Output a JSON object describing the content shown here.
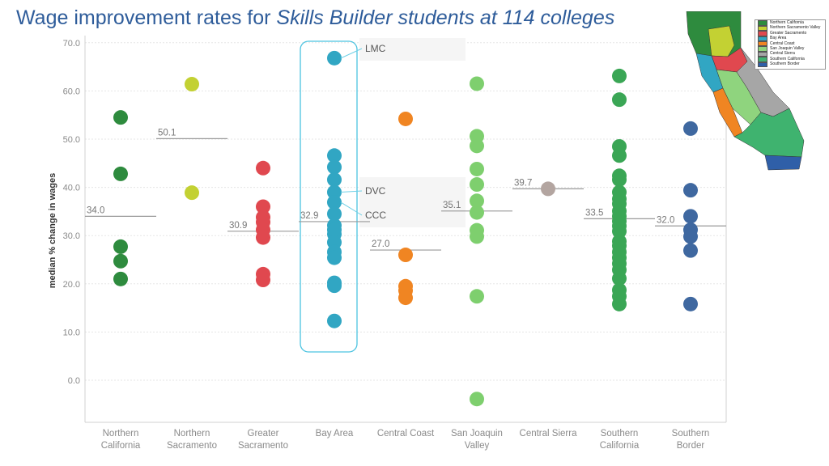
{
  "title": {
    "main": "Wage improvement rates for ",
    "emphasis": "Skills Builder students at 114 colleges"
  },
  "chart_data": {
    "type": "scatter",
    "ylabel": "median % change in wages",
    "ylim": [
      -10,
      72
    ],
    "yticks": [
      "70.0",
      "60.0",
      "50.0",
      "40.0",
      "30.0",
      "20.0",
      "10.0",
      "0.0"
    ],
    "grid": true,
    "categories": [
      {
        "name": "Northern",
        "name2": "California",
        "color": "#2e8b3e",
        "median": 34.0,
        "median_label": "34.0",
        "values": [
          54.5,
          42.8,
          27.7,
          24.7,
          21.0
        ]
      },
      {
        "name": "Northern",
        "name2": "Sacramento",
        "color": "#c3d133",
        "median": 50.1,
        "median_label": "50.1",
        "values": [
          61.4,
          38.9
        ]
      },
      {
        "name": "Greater",
        "name2": "Sacramento",
        "color": "#e0484f",
        "median": 30.9,
        "median_label": "30.9",
        "values": [
          44.0,
          36.0,
          33.8,
          32.8,
          31.2,
          29.6,
          22.0,
          20.8
        ]
      },
      {
        "name": "Bay Area",
        "name2": "",
        "color": "#31a6c3",
        "median": 32.9,
        "median_label": "32.9",
        "values": [
          66.8,
          46.6,
          44.2,
          41.6,
          39.0,
          36.9,
          34.5,
          32.1,
          31.2,
          30.3,
          28.6,
          26.6,
          25.4,
          20.2,
          19.6,
          12.3
        ]
      },
      {
        "name": "Central Coast",
        "name2": "",
        "color": "#f08522",
        "median": 27.0,
        "median_label": "27.0",
        "values": [
          54.2,
          26.0,
          19.5,
          18.6,
          17.1
        ]
      },
      {
        "name": "San Joaquin",
        "name2": "Valley",
        "color": "#7ecf6e",
        "median": 35.1,
        "median_label": "35.1",
        "values": [
          61.5,
          50.6,
          48.6,
          43.8,
          40.6,
          37.2,
          34.8,
          31.1,
          29.8,
          17.4,
          -3.9
        ]
      },
      {
        "name": "Central Sierra",
        "name2": "",
        "color": "#b3a5a0",
        "median": 39.7,
        "median_label": "39.7",
        "values": [
          39.7
        ]
      },
      {
        "name": "Southern",
        "name2": "California",
        "color": "#3aa655",
        "median": 33.5,
        "median_label": "33.5",
        "values": [
          63.1,
          58.2,
          48.5,
          46.6,
          42.4,
          41.6,
          39.0,
          37.6,
          36.6,
          35.1,
          34.0,
          33.0,
          32.0,
          30.9,
          28.8,
          27.9,
          26.6,
          25.4,
          24.2,
          22.9,
          21.1,
          18.7,
          17.4,
          15.8
        ]
      },
      {
        "name": "Southern",
        "name2": "Border",
        "color": "#3f68a0",
        "median": 32.0,
        "median_label": "32.0",
        "values": [
          52.2,
          39.4,
          34.0,
          31.2,
          29.8,
          26.9,
          15.8
        ]
      }
    ],
    "annotations": [
      {
        "label": "LMC",
        "value": 66.8,
        "category": 3
      },
      {
        "label": "DVC",
        "value": 39.0,
        "category": 3
      },
      {
        "label": "CCC",
        "value": 36.9,
        "category": 3
      }
    ],
    "highlight_category": 3
  },
  "legend": {
    "items": [
      {
        "label": "Northern California",
        "color": "#2e8b3e"
      },
      {
        "label": "Northern Sacramento Valley",
        "color": "#c3d133"
      },
      {
        "label": "Greater Sacramento",
        "color": "#e0484f"
      },
      {
        "label": "Bay Area",
        "color": "#31a6c3"
      },
      {
        "label": "Central Coast",
        "color": "#f08522"
      },
      {
        "label": "San Joaquin Valley",
        "color": "#8fd47e"
      },
      {
        "label": "Central Sierra",
        "color": "#a6a6a6"
      },
      {
        "label": "Southern California",
        "color": "#3fb36f"
      },
      {
        "label": "Southern Border",
        "color": "#2f5fa8"
      }
    ]
  }
}
